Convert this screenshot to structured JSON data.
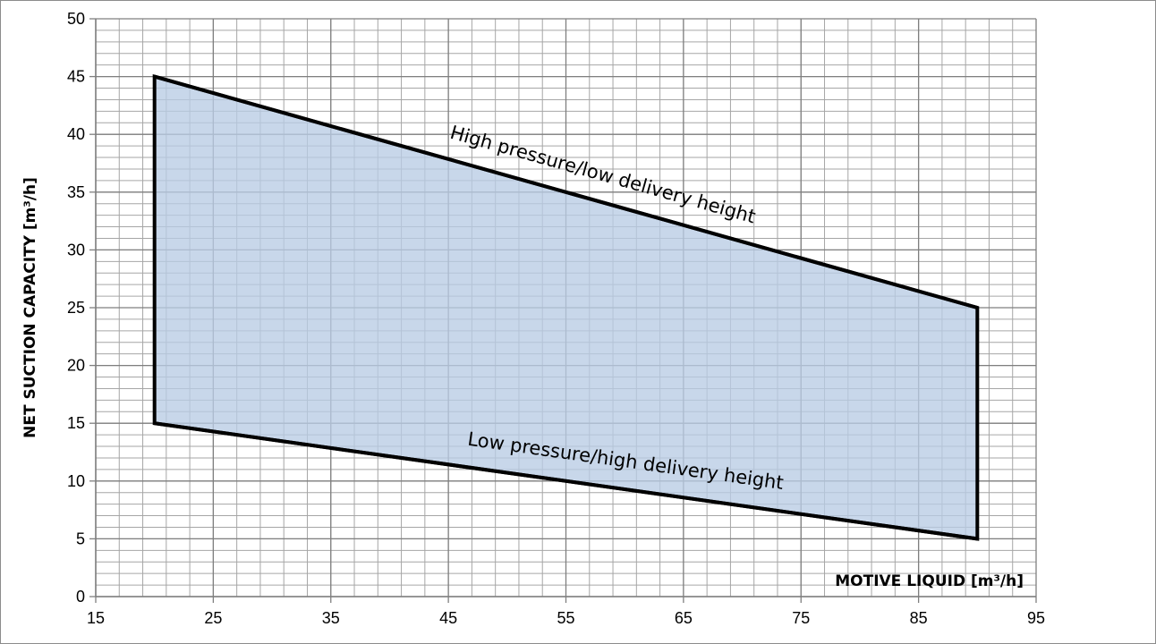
{
  "chart_data": {
    "type": "area",
    "title": "",
    "xlabel": "MOTIVE LIQUID [m³/h]",
    "ylabel": "NET SUCTION CAPACITY [m³/h]",
    "xlim": [
      15,
      95
    ],
    "ylim": [
      0,
      50
    ],
    "x_ticks": [
      15,
      25,
      35,
      45,
      55,
      65,
      75,
      85,
      95
    ],
    "y_ticks": [
      0,
      5,
      10,
      15,
      20,
      25,
      30,
      35,
      40,
      45,
      50
    ],
    "grid": {
      "major": true,
      "minor": true
    },
    "region": {
      "fill_color": "#b8cce4",
      "border_color": "#000000",
      "polygon": [
        [
          20,
          45
        ],
        [
          90,
          25
        ],
        [
          90,
          5
        ],
        [
          20,
          15
        ]
      ]
    },
    "series": [
      {
        "name": "High pressure/low delivery height",
        "x": [
          20,
          90
        ],
        "y": [
          45,
          25
        ]
      },
      {
        "name": "Low pressure/high delivery height",
        "x": [
          20,
          90
        ],
        "y": [
          15,
          5
        ]
      }
    ],
    "annotations": [
      {
        "text": "High pressure/low delivery height",
        "x": 58,
        "y": 36
      },
      {
        "text": "Low pressure/high delivery height",
        "x": 60,
        "y": 11.2
      }
    ]
  }
}
